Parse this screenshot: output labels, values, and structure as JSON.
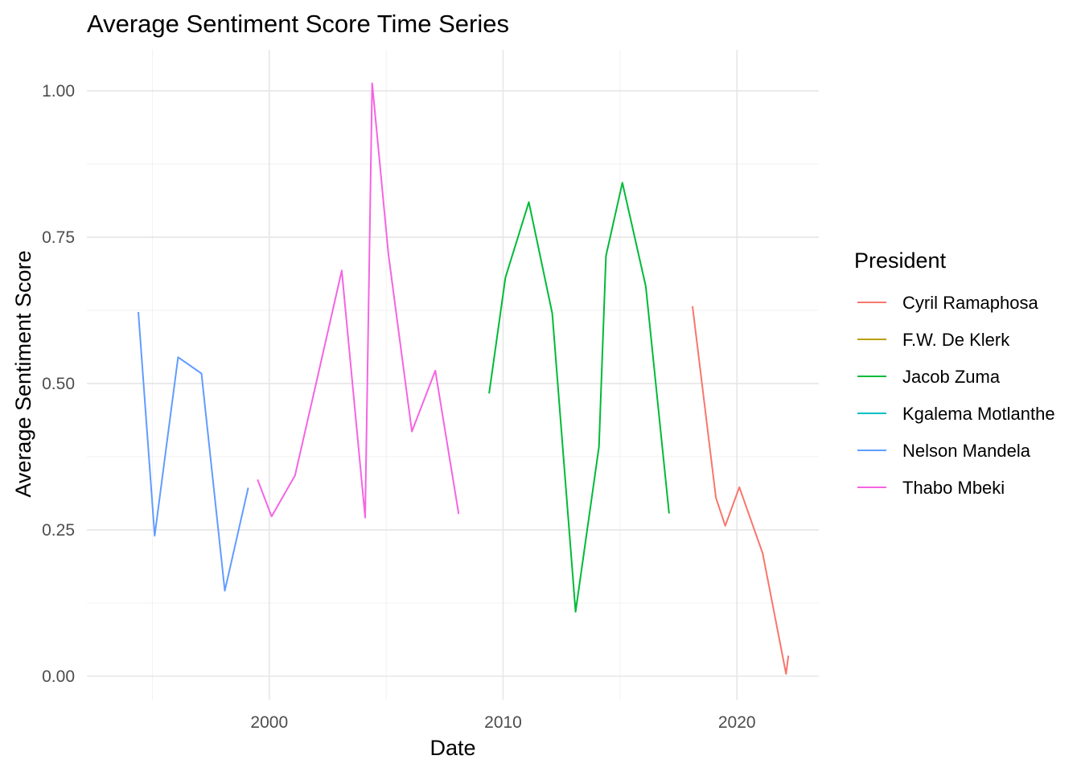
{
  "chart_data": {
    "type": "line",
    "title": "Average Sentiment Score Time Series",
    "xlabel": "Date",
    "ylabel": "Average Sentiment Score",
    "xlim": [
      1992.2,
      2023.5
    ],
    "ylim": [
      -0.04,
      1.07
    ],
    "x_ticks": [
      2000,
      2010,
      2020
    ],
    "x_tick_labels": [
      "2000",
      "2010",
      "2020"
    ],
    "x_minor_ticks": [
      1995,
      2005,
      2015
    ],
    "y_ticks": [
      0,
      0.25,
      0.5,
      0.75,
      1
    ],
    "y_tick_labels": [
      "0.00",
      "0.25",
      "0.50",
      "0.75",
      "1.00"
    ],
    "y_minor_ticks": [
      0.125,
      0.375,
      0.625,
      0.875
    ],
    "grid": true,
    "legend": {
      "title": "President",
      "position": "right"
    },
    "series": [
      {
        "name": "Cyril Ramaphosa",
        "color": "#F8766D",
        "x": [
          2018.1,
          2019.1,
          2019.5,
          2020.1,
          2021.1,
          2022.1,
          2022.2
        ],
        "y": [
          0.632,
          0.305,
          0.257,
          0.323,
          0.21,
          0.004,
          0.035
        ]
      },
      {
        "name": "F.W. De Klerk",
        "color": "#B79F00",
        "x": [],
        "y": []
      },
      {
        "name": "Jacob Zuma",
        "color": "#00BA38",
        "x": [
          2009.4,
          2010.1,
          2011.1,
          2012.1,
          2013.1,
          2014.1,
          2014.4,
          2015.1,
          2016.1,
          2017.1
        ],
        "y": [
          0.483,
          0.681,
          0.81,
          0.62,
          0.11,
          0.392,
          0.718,
          0.843,
          0.666,
          0.278
        ]
      },
      {
        "name": "Kgalema Motlanthe",
        "color": "#00BFC4",
        "x": [],
        "y": []
      },
      {
        "name": "Nelson Mandela",
        "color": "#619CFF",
        "x": [
          1994.4,
          1995.1,
          1996.1,
          1997.1,
          1998.1,
          1999.1
        ],
        "y": [
          0.622,
          0.24,
          0.545,
          0.517,
          0.146,
          0.322
        ]
      },
      {
        "name": "Thabo Mbeki",
        "color": "#F564E3",
        "x": [
          1999.5,
          2000.1,
          2001.1,
          2002.1,
          2003.1,
          2004.1,
          2004.4,
          2005.1,
          2006.1,
          2007.1,
          2008.1
        ],
        "y": [
          0.336,
          0.273,
          0.343,
          0.517,
          0.693,
          0.271,
          1.013,
          0.72,
          0.418,
          0.522,
          0.277
        ]
      }
    ]
  }
}
